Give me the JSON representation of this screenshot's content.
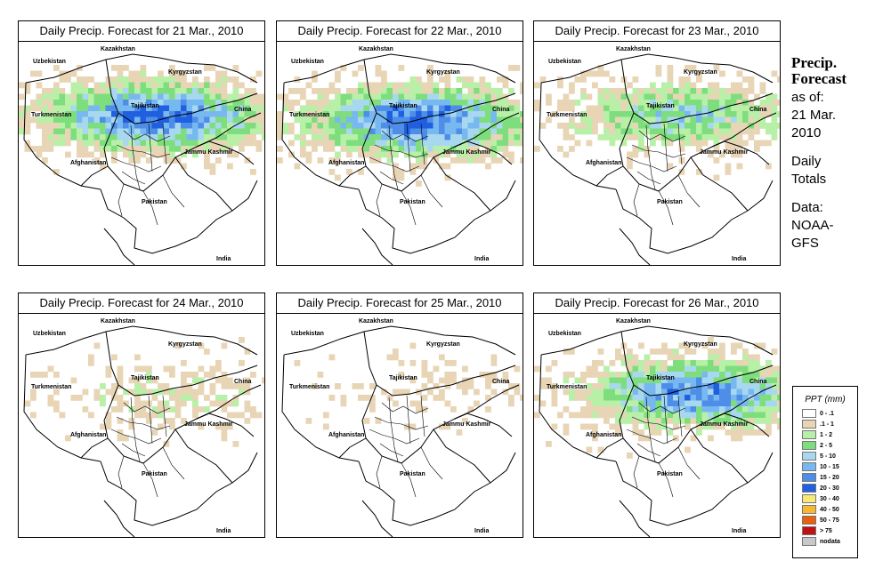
{
  "panels": [
    {
      "title_prefix": "Daily Precip. Forecast for ",
      "date": "21 Mar., 2010",
      "intensity": 1.0,
      "shift": 0
    },
    {
      "title_prefix": "Daily Precip. Forecast for ",
      "date": "22 Mar., 2010",
      "intensity": 1.0,
      "shift": 1
    },
    {
      "title_prefix": "Daily Precip. Forecast for ",
      "date": "23 Mar., 2010",
      "intensity": 0.6,
      "shift": 2
    },
    {
      "title_prefix": "Daily Precip. Forecast for ",
      "date": "24 Mar., 2010",
      "intensity": 0.25,
      "shift": 3
    },
    {
      "title_prefix": "Daily Precip. Forecast for ",
      "date": "25 Mar., 2010",
      "intensity": 0.15,
      "shift": 4
    },
    {
      "title_prefix": "Daily Precip. Forecast for ",
      "date": "26 Mar., 2010",
      "intensity": 0.9,
      "shift": 5
    }
  ],
  "map_labels": {
    "kazakhstan": "Kazakhstan",
    "uzbekistan": "Uzbekistan",
    "kyrgyzstan": "Kyrgyzstan",
    "tajikistan": "Tajikistan",
    "turkmenistan": "Turkmenistan",
    "china": "China",
    "afghanistan": "Afghanistan",
    "jammu_kashmir": "Jammu Kashmir",
    "pakistan": "Pakistan",
    "india": "India"
  },
  "side": {
    "title_line1": "Precip.",
    "title_line2": "Forecast",
    "asof_line1": "as of:",
    "asof_line2": "21 Mar.",
    "asof_line3": "2010",
    "totals_line1": "Daily",
    "totals_line2": "Totals",
    "data_line1": "Data:",
    "data_line2": "NOAA-",
    "data_line3": "GFS"
  },
  "legend": {
    "title": "PPT (mm)",
    "items": [
      {
        "label": "0 - .1",
        "color": "#ffffff"
      },
      {
        "label": ".1 - 1",
        "color": "#e8d5b5"
      },
      {
        "label": "1 - 2",
        "color": "#b8f0a8"
      },
      {
        "label": "2 - 5",
        "color": "#7ede7e"
      },
      {
        "label": "5 - 10",
        "color": "#a8d8f0"
      },
      {
        "label": "10 - 15",
        "color": "#78b8f0"
      },
      {
        "label": "15 - 20",
        "color": "#4e8ee8"
      },
      {
        "label": "20 - 30",
        "color": "#1f5fe0"
      },
      {
        "label": "30 - 40",
        "color": "#f8e878"
      },
      {
        "label": "40 - 50",
        "color": "#f8b830"
      },
      {
        "label": "50 - 75",
        "color": "#e86010"
      },
      {
        "label": "> 75",
        "color": "#c01010"
      },
      {
        "label": "nodata",
        "color": "#c8c8c8"
      }
    ]
  }
}
